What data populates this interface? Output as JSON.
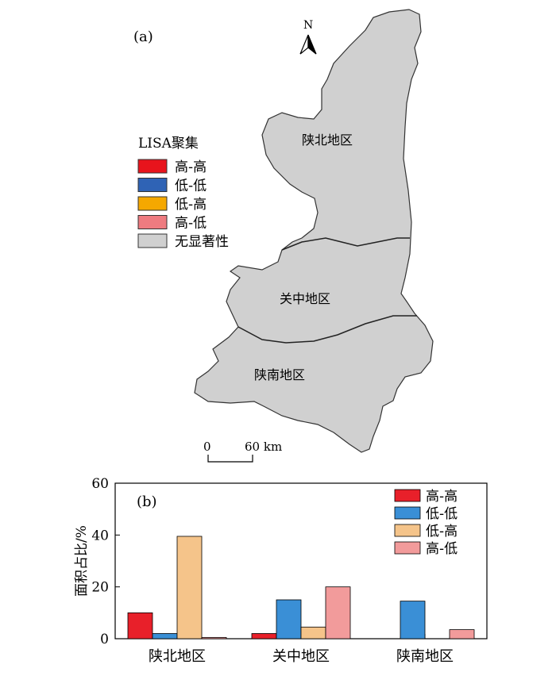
{
  "map": {
    "panel_label": "(a)",
    "north_label": "N",
    "legend": {
      "title": "LISA聚集",
      "items": [
        {
          "label": "高-高",
          "color": "#e8141c"
        },
        {
          "label": "低-低",
          "color": "#2f63b5"
        },
        {
          "label": "低-高",
          "color": "#f5a800"
        },
        {
          "label": "高-低",
          "color": "#ee7b80"
        },
        {
          "label": "无显著性",
          "color": "#d0d0d0"
        }
      ]
    },
    "regions": {
      "north": "陕北地区",
      "central": "关中地区",
      "south": "陕南地区"
    },
    "scale_bar": {
      "start": "0",
      "end": "60 km"
    }
  },
  "chart_data": {
    "type": "bar",
    "panel_label": "(b)",
    "ylabel": "面积占比/%",
    "xlabel": "",
    "ylim": [
      0,
      60
    ],
    "yticks": [
      0,
      20,
      40,
      60
    ],
    "categories": [
      "陕北地区",
      "关中地区",
      "陕南地区"
    ],
    "series": [
      {
        "name": "高-高",
        "color": "#e8202a",
        "values": [
          10,
          2,
          0
        ]
      },
      {
        "name": "低-低",
        "color": "#3a8fd6",
        "values": [
          2,
          15,
          14.5
        ]
      },
      {
        "name": "低-高",
        "color": "#f5c48a",
        "values": [
          39.5,
          4.5,
          0
        ]
      },
      {
        "name": "高-低",
        "color": "#f29b9b",
        "values": [
          0.5,
          20,
          3.5
        ]
      }
    ],
    "legend_position": "top-right"
  }
}
